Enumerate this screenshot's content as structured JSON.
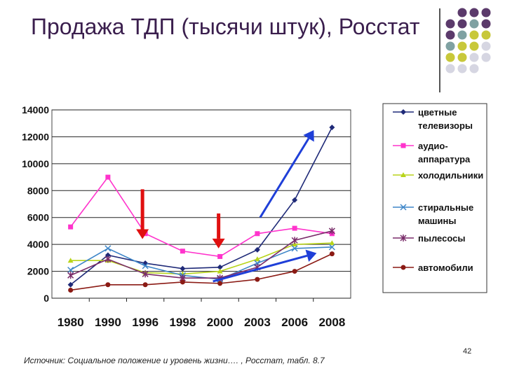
{
  "slide": {
    "title": "Продажа ТДП (тысячи штук), Росстат",
    "source": "Источник: Социальное положение и уровень жизни…. , Росстат, табл. 8.7",
    "page_number": "42"
  },
  "colors": {
    "title": "#3a1e4d",
    "decor_purple": "#5b3a6b",
    "decor_teal": "#7fa1a2",
    "decor_olive": "#c8c83a",
    "decor_grey": "#d6d6e2",
    "arrow_red": "#e01010",
    "arrow_blue": "#1f3fd8"
  },
  "chart_data": {
    "type": "line",
    "categories": [
      "1980",
      "1990",
      "1996",
      "1998",
      "2000",
      "2003",
      "2006",
      "2008"
    ],
    "ylim": [
      0,
      14000
    ],
    "yticks": [
      "0",
      "2000",
      "4000",
      "6000",
      "8000",
      "10000",
      "12000",
      "14000"
    ],
    "grid": true,
    "legend_position": "right",
    "series": [
      {
        "name": "цветные телевизоры",
        "color": "#1f2a78",
        "marker": "diamond",
        "values": [
          1000,
          3200,
          2600,
          2200,
          2300,
          3600,
          7300,
          12700
        ]
      },
      {
        "name": "аудио-аппаратура",
        "color": "#ff33cc",
        "marker": "square",
        "values": [
          5300,
          9000,
          4800,
          3500,
          3100,
          4800,
          5200,
          4800
        ]
      },
      {
        "name": "холодильники",
        "color": "#b8d41a",
        "marker": "triangle",
        "values": [
          2800,
          2800,
          1900,
          1800,
          2000,
          2900,
          4000,
          4100
        ]
      },
      {
        "name": "стиральные машины",
        "color": "#3e86c8",
        "marker": "x",
        "values": [
          2100,
          3700,
          2400,
          1700,
          1400,
          2600,
          3700,
          3800
        ]
      },
      {
        "name": "пылесосы",
        "color": "#7a2d6a",
        "marker": "star",
        "values": [
          1700,
          2900,
          1800,
          1500,
          1500,
          2300,
          4300,
          5000
        ]
      },
      {
        "name": "автомобили",
        "color": "#8b1a14",
        "marker": "circle",
        "values": [
          600,
          1000,
          1000,
          1200,
          1100,
          1400,
          2000,
          3300
        ]
      }
    ]
  }
}
